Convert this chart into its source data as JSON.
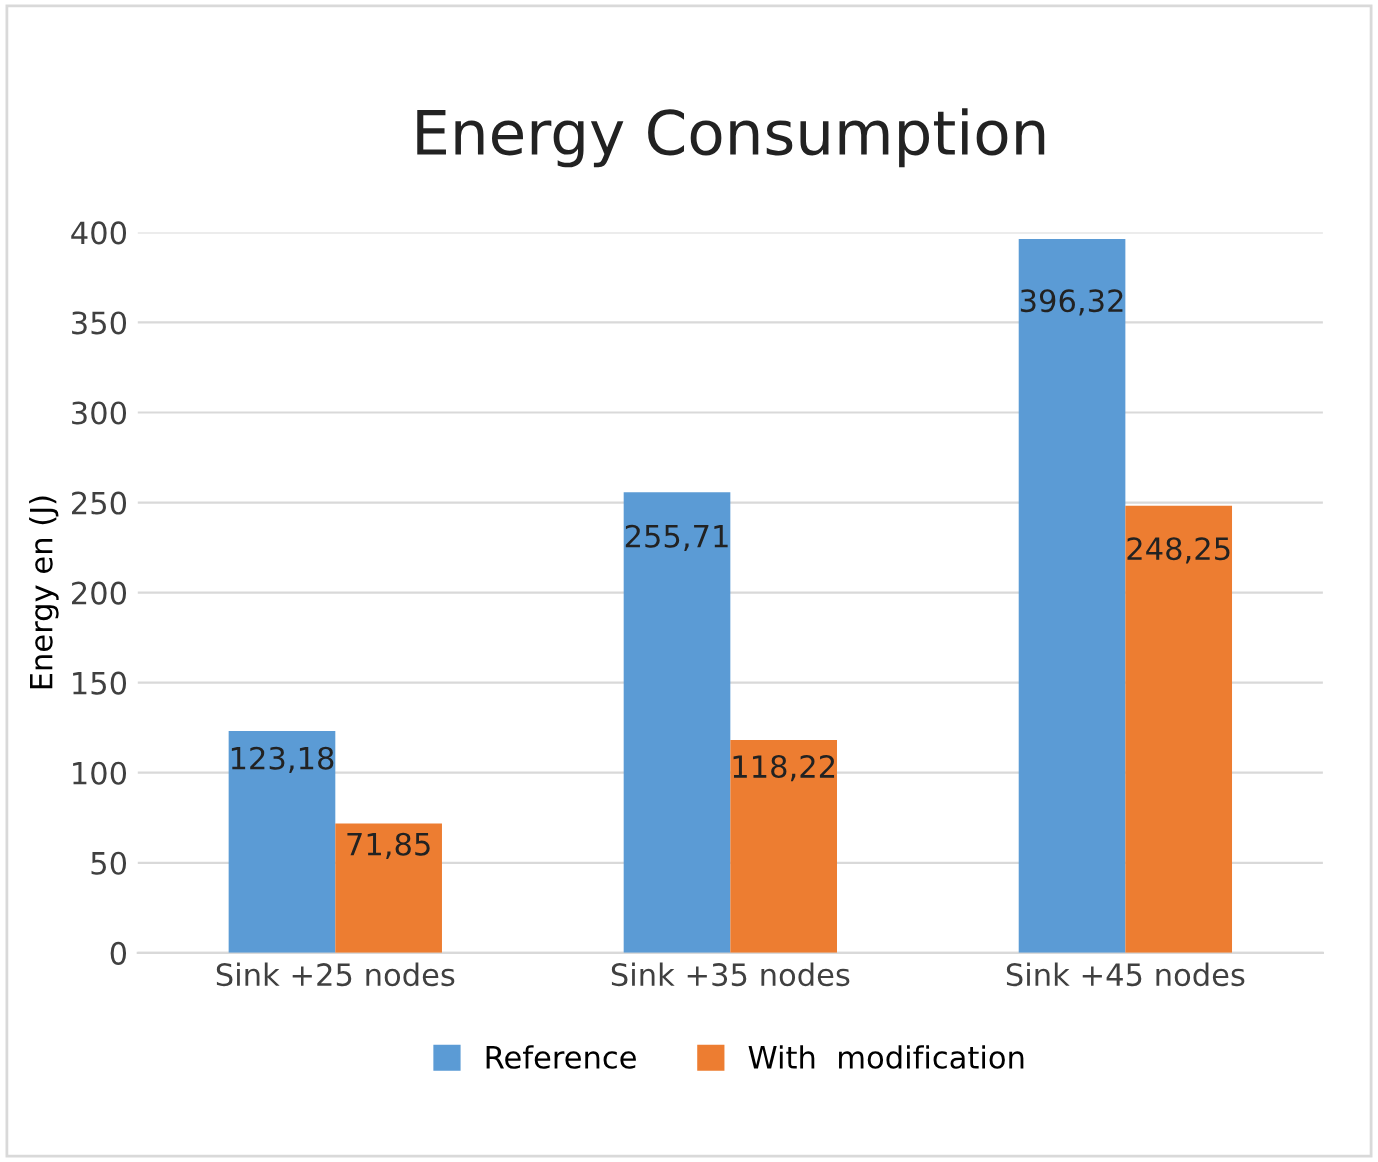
{
  "chart_data": {
    "type": "bar",
    "title": "Energy Consumption",
    "ylabel": "Energy en (J)",
    "categories": [
      "Sink +25 nodes",
      "Sink +35 nodes",
      "Sink +45 nodes"
    ],
    "series": [
      {
        "name": "Reference",
        "color": "#5b9bd5",
        "values": [
          123.18,
          255.71,
          396.32
        ],
        "value_labels": [
          "123,18",
          "255,71",
          "396,32"
        ]
      },
      {
        "name": "With  modification",
        "color": "#ed7d31",
        "values": [
          71.85,
          118.22,
          248.25
        ],
        "value_labels": [
          "71,85",
          "118,22",
          "248,25"
        ]
      }
    ],
    "ylim": [
      0,
      400
    ],
    "yticks": [
      0,
      50,
      100,
      150,
      200,
      250,
      300,
      350,
      400
    ],
    "grid": "y",
    "legend": "bottom"
  }
}
